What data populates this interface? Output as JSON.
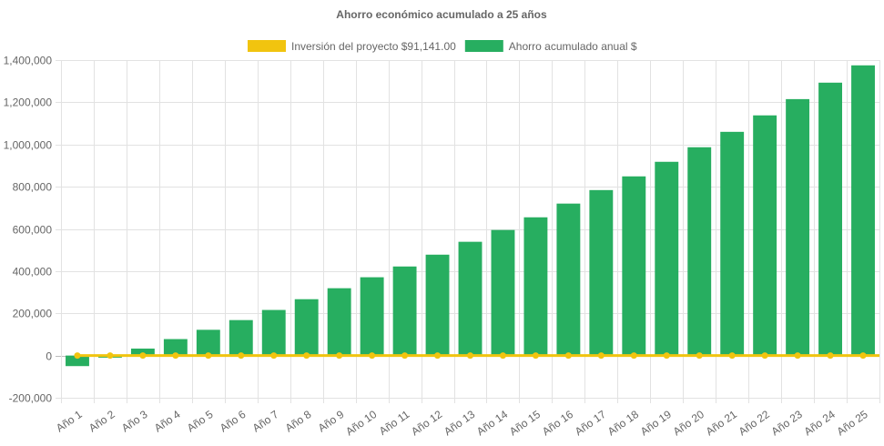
{
  "chart_data": {
    "type": "bar",
    "title": "Ahorro económico acumulado a 25 años",
    "categories": [
      "Año 1",
      "Año 2",
      "Año 3",
      "Año 4",
      "Año 5",
      "Año 6",
      "Año 7",
      "Año 8",
      "Año 9",
      "Año 10",
      "Año 11",
      "Año 12",
      "Año 13",
      "Año 14",
      "Año 15",
      "Año 16",
      "Año 17",
      "Año 18",
      "Año 19",
      "Año 20",
      "Año 21",
      "Año 22",
      "Año 23",
      "Año 24",
      "Año 25"
    ],
    "series": [
      {
        "name": "Inversión del proyecto $91,141.00",
        "type": "line",
        "color": "#f1c40f",
        "values": [
          0,
          0,
          0,
          0,
          0,
          0,
          0,
          0,
          0,
          0,
          0,
          0,
          0,
          0,
          0,
          0,
          0,
          0,
          0,
          0,
          0,
          0,
          0,
          0,
          0
        ]
      },
      {
        "name": "Ahorro acumulado anual $",
        "type": "bar",
        "color": "#27ae60",
        "values": [
          -50000,
          -10000,
          33000,
          78000,
          122000,
          168000,
          216000,
          267000,
          319000,
          371000,
          422000,
          478000,
          539000,
          595000,
          655000,
          720000,
          784000,
          849000,
          918000,
          987000,
          1060000,
          1138000,
          1215000,
          1293000,
          1375000
        ]
      }
    ],
    "ylim": [
      -200000,
      1400000
    ],
    "yticks": [
      "-200,000",
      "0",
      "200,000",
      "400,000",
      "600,000",
      "800,000",
      "1,000,000",
      "1,200,000",
      "1,400,000"
    ],
    "grid": true,
    "legend": "top"
  }
}
